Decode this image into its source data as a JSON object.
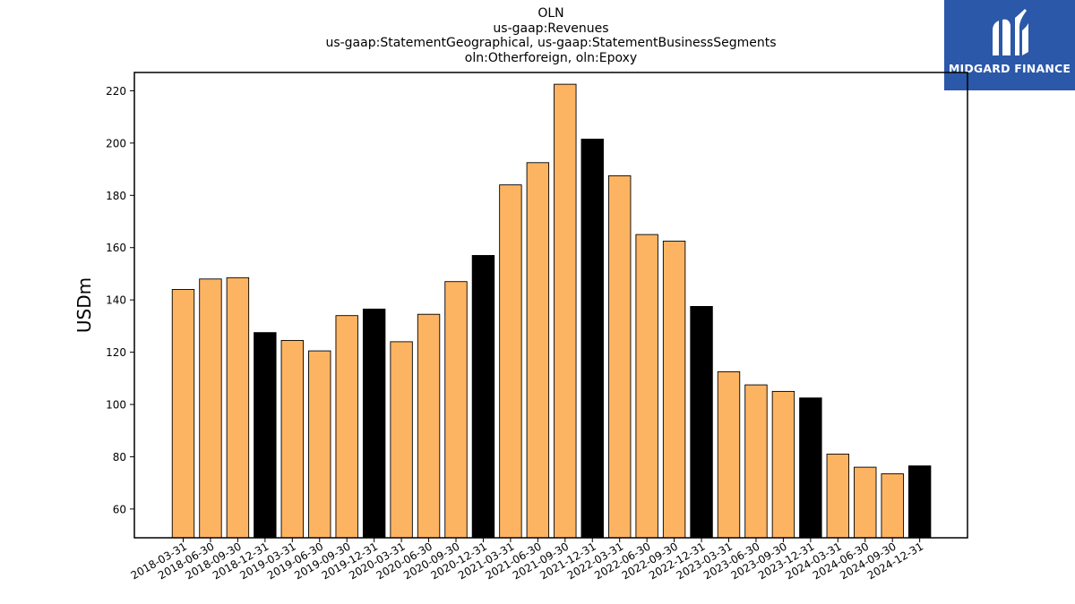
{
  "title_lines": [
    "OLN",
    "us-gaap:Revenues",
    "us-gaap:StatementGeographical, us-gaap:StatementBusinessSegments",
    "oln:Otherforeign, oln:Epoxy"
  ],
  "logo": {
    "text": "MIDGARD FINANCE",
    "icon": "midgard-logo-icon",
    "color": "#2b58a8"
  },
  "chart_data": {
    "type": "bar",
    "ylabel": "USDm",
    "ylim": [
      49,
      227
    ],
    "yticks": [
      60,
      80,
      100,
      120,
      140,
      160,
      180,
      200,
      220
    ],
    "grid": false,
    "colors": {
      "quarter": "#fdb462",
      "year_end": "#000000",
      "edge": "#000000"
    },
    "categories": [
      "2018-03-31",
      "2018-06-30",
      "2018-09-30",
      "2018-12-31",
      "2019-03-31",
      "2019-06-30",
      "2019-09-30",
      "2019-12-31",
      "2020-03-31",
      "2020-06-30",
      "2020-09-30",
      "2020-12-31",
      "2021-03-31",
      "2021-06-30",
      "2021-09-30",
      "2021-12-31",
      "2022-03-31",
      "2022-06-30",
      "2022-09-30",
      "2022-12-31",
      "2023-03-31",
      "2023-06-30",
      "2023-09-30",
      "2023-12-31",
      "2024-03-31",
      "2024-06-30",
      "2024-09-30",
      "2024-12-31"
    ],
    "values": [
      144,
      148,
      148.5,
      127.5,
      124.5,
      120.5,
      134,
      136.5,
      124,
      134.5,
      147,
      157,
      184,
      192.5,
      222.5,
      201.5,
      187.5,
      165,
      162.5,
      137.5,
      112.5,
      107.5,
      105,
      102.5,
      81,
      76,
      73.5,
      76.5
    ]
  }
}
